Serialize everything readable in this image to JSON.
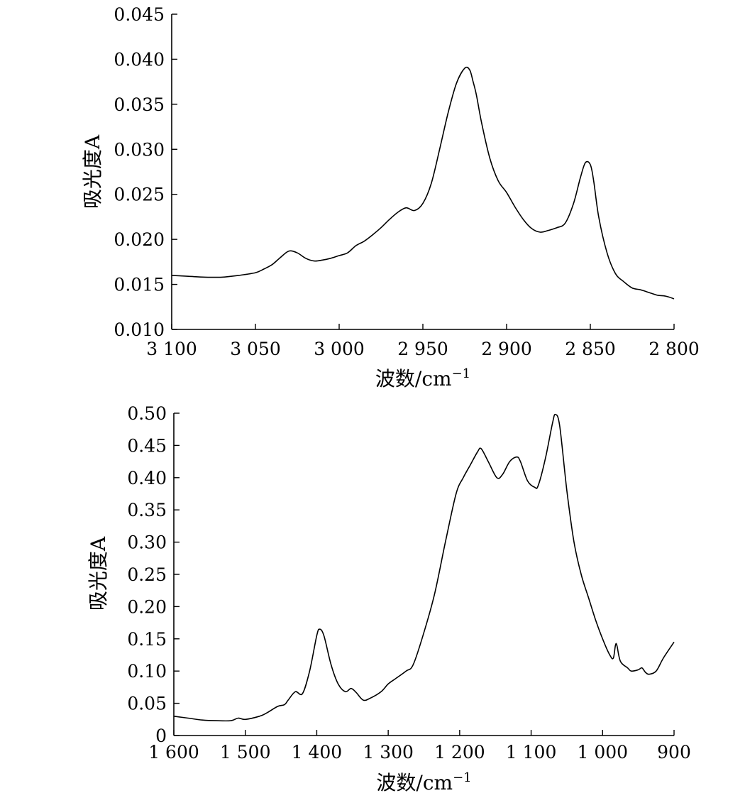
{
  "chart_data": [
    {
      "type": "line",
      "title": "",
      "xlabel": "波数/cm",
      "xlabel_sup": "−1",
      "ylabel": "吸光度A",
      "xlim": [
        3100,
        2800
      ],
      "ylim": [
        0.01,
        0.045
      ],
      "x_reversed": true,
      "grid": false,
      "xticks": [
        3100,
        3050,
        3000,
        2950,
        2900,
        2850,
        2800
      ],
      "xtick_labels": [
        "3 100",
        "3 050",
        "3 000",
        "2 950",
        "2 900",
        "2 850",
        "2 800"
      ],
      "yticks": [
        0.01,
        0.015,
        0.02,
        0.025,
        0.03,
        0.035,
        0.04,
        0.045
      ],
      "ytick_labels": [
        "0.010",
        "0.015",
        "0.020",
        "0.025",
        "0.030",
        "0.035",
        "0.040",
        "0.045"
      ],
      "series": [
        {
          "x": [
            3100,
            3090,
            3080,
            3070,
            3060,
            3050,
            3045,
            3040,
            3035,
            3030,
            3025,
            3020,
            3015,
            3010,
            3005,
            3000,
            2995,
            2990,
            2985,
            2980,
            2975,
            2970,
            2965,
            2960,
            2955,
            2950,
            2945,
            2940,
            2935,
            2930,
            2925,
            2922,
            2920,
            2918,
            2915,
            2910,
            2905,
            2900,
            2895,
            2890,
            2885,
            2880,
            2875,
            2870,
            2865,
            2860,
            2856,
            2853,
            2850,
            2848,
            2845,
            2840,
            2835,
            2830,
            2825,
            2820,
            2815,
            2810,
            2805,
            2800
          ],
          "y": [
            0.016,
            0.0159,
            0.0158,
            0.0158,
            0.016,
            0.0163,
            0.0167,
            0.0172,
            0.018,
            0.0187,
            0.0185,
            0.0179,
            0.0176,
            0.0177,
            0.0179,
            0.0182,
            0.0185,
            0.0193,
            0.0198,
            0.0205,
            0.0213,
            0.0222,
            0.023,
            0.0235,
            0.0232,
            0.024,
            0.0262,
            0.03,
            0.034,
            0.0373,
            0.039,
            0.0388,
            0.0375,
            0.036,
            0.033,
            0.029,
            0.0265,
            0.0252,
            0.0236,
            0.0222,
            0.0212,
            0.0208,
            0.021,
            0.0213,
            0.0218,
            0.024,
            0.0268,
            0.0285,
            0.0283,
            0.0265,
            0.0225,
            0.0185,
            0.0162,
            0.0153,
            0.0146,
            0.0144,
            0.0141,
            0.0138,
            0.0137,
            0.0134
          ]
        }
      ]
    },
    {
      "type": "line",
      "title": "",
      "xlabel": "波数/cm",
      "xlabel_sup": "−1",
      "ylabel": "吸光度A",
      "xlim": [
        1600,
        900
      ],
      "ylim": [
        0,
        0.5
      ],
      "x_reversed": true,
      "grid": false,
      "xticks": [
        1600,
        1500,
        1400,
        1300,
        1200,
        1100,
        1000,
        900
      ],
      "xtick_labels": [
        "1 600",
        "1 500",
        "1 400",
        "1 300",
        "1 200",
        "1 100",
        "1 000",
        "900"
      ],
      "yticks": [
        0,
        0.05,
        0.1,
        0.15,
        0.2,
        0.25,
        0.3,
        0.35,
        0.4,
        0.45,
        0.5
      ],
      "ytick_labels": [
        "0",
        "0.05",
        "0.10",
        "0.15",
        "0.20",
        "0.25",
        "0.30",
        "0.35",
        "0.40",
        "0.45",
        "0.50"
      ],
      "series": [
        {
          "x": [
            1600,
            1580,
            1560,
            1540,
            1520,
            1510,
            1500,
            1480,
            1470,
            1455,
            1445,
            1440,
            1430,
            1420,
            1410,
            1400,
            1396,
            1390,
            1380,
            1370,
            1360,
            1352,
            1345,
            1335,
            1325,
            1310,
            1300,
            1290,
            1275,
            1265,
            1250,
            1235,
            1220,
            1205,
            1195,
            1185,
            1175,
            1170,
            1160,
            1148,
            1140,
            1130,
            1120,
            1115,
            1105,
            1095,
            1090,
            1080,
            1070,
            1066,
            1060,
            1050,
            1040,
            1030,
            1020,
            1010,
            1000,
            990,
            985,
            982,
            980,
            975,
            965,
            960,
            950,
            945,
            940,
            935,
            925,
            915,
            900
          ],
          "y": [
            0.03,
            0.027,
            0.024,
            0.023,
            0.023,
            0.027,
            0.025,
            0.03,
            0.035,
            0.045,
            0.048,
            0.055,
            0.068,
            0.065,
            0.1,
            0.155,
            0.165,
            0.155,
            0.11,
            0.08,
            0.068,
            0.073,
            0.067,
            0.055,
            0.058,
            0.068,
            0.08,
            0.088,
            0.1,
            0.11,
            0.16,
            0.22,
            0.3,
            0.375,
            0.4,
            0.42,
            0.44,
            0.445,
            0.425,
            0.4,
            0.405,
            0.425,
            0.432,
            0.425,
            0.395,
            0.385,
            0.388,
            0.43,
            0.485,
            0.498,
            0.48,
            0.38,
            0.3,
            0.25,
            0.215,
            0.18,
            0.15,
            0.125,
            0.12,
            0.14,
            0.14,
            0.115,
            0.105,
            0.1,
            0.102,
            0.105,
            0.098,
            0.095,
            0.1,
            0.12,
            0.145
          ]
        }
      ]
    }
  ]
}
